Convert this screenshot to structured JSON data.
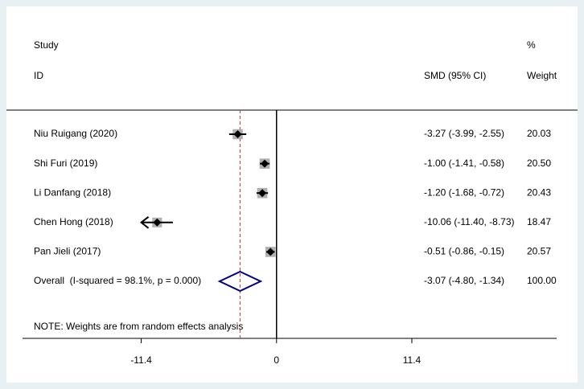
{
  "chart_data": {
    "type": "forest",
    "headers": {
      "study": "Study",
      "id": "ID",
      "effect": "SMD (95% CI)",
      "percent": "%",
      "weight": "Weight"
    },
    "categories": [
      "Niu Ruigang (2020)",
      "Shi Furi (2019)",
      "Li Danfang (2018)",
      "Chen Hong (2018)",
      "Pan Jieli (2017)"
    ],
    "values": [
      -3.27,
      -1.0,
      -1.2,
      -10.06,
      -0.51
    ],
    "ci_low": [
      -3.99,
      -1.41,
      -1.68,
      -11.4,
      -0.86
    ],
    "ci_high": [
      -2.55,
      -0.58,
      -0.72,
      -8.73,
      -0.15
    ],
    "value_labels": [
      "-3.27 (-3.99, -2.55)",
      "-1.00 (-1.41, -0.58)",
      "-1.20 (-1.68, -0.72)",
      "-10.06 (-11.40, -8.73)",
      "-0.51 (-0.86, -0.15)"
    ],
    "weights": [
      20.03,
      20.5,
      20.43,
      18.47,
      20.57
    ],
    "weight_labels": [
      "20.03",
      "20.50",
      "20.43",
      "18.47",
      "20.57"
    ],
    "overall": {
      "label": "Overall  (I-squared = 98.1%, p = 0.000)",
      "value": -3.07,
      "ci_low": -4.8,
      "ci_high": -1.34,
      "value_label": "-3.07 (-4.80, -1.34)",
      "weight": 100,
      "weight_label": "100.00"
    },
    "note": "NOTE: Weights are from random effects analysis",
    "xlim": [
      -21.4,
      23.6
    ],
    "xticks": [
      -11.4,
      0,
      11.4
    ],
    "null_line": 0,
    "colors": {
      "box": "#b0b0b0",
      "point": "#000000",
      "overall": "#000080",
      "overall_line": "#c0504d"
    }
  }
}
